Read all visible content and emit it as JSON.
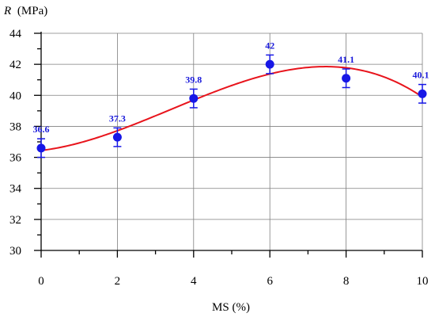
{
  "chart_data": {
    "type": "scatter",
    "x": [
      0,
      2,
      4,
      6,
      8,
      10
    ],
    "y": [
      36.6,
      37.3,
      39.8,
      42.0,
      41.1,
      40.1
    ],
    "error": [
      0.6,
      0.6,
      0.6,
      0.6,
      0.6,
      0.6
    ],
    "data_labels": [
      "36.6",
      "37.3",
      "39.8",
      "42",
      "41.1",
      "40.1"
    ],
    "xlabel": "MS (%)",
    "ylabel_symbol": "R",
    "ylabel_unit": "(MPa)",
    "xlim": [
      0,
      10
    ],
    "ylim": [
      30,
      44
    ],
    "x_ticks": [
      "0",
      "2",
      "4",
      "6",
      "8",
      "10"
    ],
    "y_ticks": [
      "30",
      "32",
      "34",
      "36",
      "38",
      "40",
      "42",
      "44"
    ],
    "grid": true,
    "trendline": {
      "type": "cubic polynomial fit",
      "color": "#e8141c"
    },
    "marker_color": "#1717e6",
    "label_color": "#1a1adb"
  }
}
